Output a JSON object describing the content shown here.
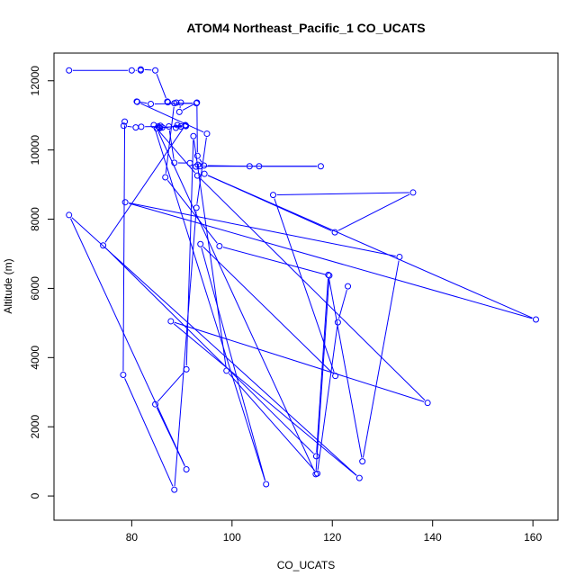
{
  "chart_data": {
    "type": "line",
    "title": "ATOM4 Northeast_Pacific_1 CO_UCATS",
    "xlabel": "CO_UCATS",
    "ylabel": "Altitude (m)",
    "xlim": [
      64.5,
      165
    ],
    "ylim": [
      -700,
      12800
    ],
    "xticks": [
      80,
      100,
      120,
      140,
      160
    ],
    "yticks": [
      0,
      2000,
      4000,
      6000,
      8000,
      10000,
      12000
    ],
    "grid": false,
    "series_color": "#0000ff",
    "points": [
      {
        "x": 67.5,
        "y": 12300
      },
      {
        "x": 80.0,
        "y": 12300
      },
      {
        "x": 81.8,
        "y": 12300
      },
      {
        "x": 81.8,
        "y": 12330
      },
      {
        "x": 84.7,
        "y": 12300
      },
      {
        "x": 87.1,
        "y": 11400
      },
      {
        "x": 87.2,
        "y": 11380
      },
      {
        "x": 88.9,
        "y": 11370
      },
      {
        "x": 89.8,
        "y": 11370
      },
      {
        "x": 89.5,
        "y": 11100
      },
      {
        "x": 93.0,
        "y": 11370
      },
      {
        "x": 93.1,
        "y": 9830
      },
      {
        "x": 94.4,
        "y": 9550
      },
      {
        "x": 103.5,
        "y": 9530
      },
      {
        "x": 105.4,
        "y": 9530
      },
      {
        "x": 117.7,
        "y": 9530
      },
      {
        "x": 93.6,
        "y": 9530
      },
      {
        "x": 93.2,
        "y": 9570
      },
      {
        "x": 92.8,
        "y": 9520
      },
      {
        "x": 91.6,
        "y": 9620
      },
      {
        "x": 88.5,
        "y": 9630
      },
      {
        "x": 87.4,
        "y": 10680
      },
      {
        "x": 90.8,
        "y": 10700
      },
      {
        "x": 89.8,
        "y": 10680
      },
      {
        "x": 89.1,
        "y": 10720
      },
      {
        "x": 88.8,
        "y": 10640
      },
      {
        "x": 90.8,
        "y": 10690
      },
      {
        "x": 85.5,
        "y": 10650
      },
      {
        "x": 85.7,
        "y": 10700
      },
      {
        "x": 86.1,
        "y": 10650
      },
      {
        "x": 85.6,
        "y": 10630
      },
      {
        "x": 85.3,
        "y": 10680
      },
      {
        "x": 81.9,
        "y": 10670
      },
      {
        "x": 80.8,
        "y": 10650
      },
      {
        "x": 78.4,
        "y": 10700
      },
      {
        "x": 78.6,
        "y": 10820
      },
      {
        "x": 78.3,
        "y": 3500
      },
      {
        "x": 88.5,
        "y": 180
      },
      {
        "x": 92.9,
        "y": 8330
      },
      {
        "x": 95.0,
        "y": 10470
      },
      {
        "x": 81.1,
        "y": 11390
      },
      {
        "x": 81.0,
        "y": 11400
      },
      {
        "x": 83.8,
        "y": 11330
      },
      {
        "x": 92.9,
        "y": 11350
      },
      {
        "x": 88.5,
        "y": 11350
      },
      {
        "x": 86.7,
        "y": 9210
      },
      {
        "x": 97.5,
        "y": 7220
      },
      {
        "x": 119.4,
        "y": 6370
      },
      {
        "x": 116.7,
        "y": 630
      },
      {
        "x": 85.0,
        "y": 10620
      },
      {
        "x": 90.7,
        "y": 10720
      },
      {
        "x": 74.3,
        "y": 7240
      },
      {
        "x": 116.8,
        "y": 1150
      },
      {
        "x": 119.2,
        "y": 6390
      },
      {
        "x": 126.0,
        "y": 1000
      },
      {
        "x": 133.4,
        "y": 6910
      },
      {
        "x": 78.7,
        "y": 8490
      },
      {
        "x": 160.6,
        "y": 5100
      },
      {
        "x": 94.5,
        "y": 9310
      },
      {
        "x": 120.5,
        "y": 7620
      },
      {
        "x": 136.1,
        "y": 8770
      },
      {
        "x": 108.2,
        "y": 8700
      },
      {
        "x": 120.6,
        "y": 3470
      },
      {
        "x": 93.7,
        "y": 7280
      },
      {
        "x": 106.8,
        "y": 340
      },
      {
        "x": 84.4,
        "y": 10720
      },
      {
        "x": 93.1,
        "y": 9260
      },
      {
        "x": 139.0,
        "y": 2690
      },
      {
        "x": 87.8,
        "y": 5050
      },
      {
        "x": 125.4,
        "y": 520
      },
      {
        "x": 67.5,
        "y": 8120
      },
      {
        "x": 90.9,
        "y": 770
      },
      {
        "x": 84.7,
        "y": 2650
      },
      {
        "x": 90.9,
        "y": 3660
      },
      {
        "x": 92.3,
        "y": 10400
      },
      {
        "x": 98.9,
        "y": 3620
      },
      {
        "x": 117.0,
        "y": 650
      },
      {
        "x": 121.1,
        "y": 5020
      },
      {
        "x": 123.1,
        "y": 6060
      }
    ]
  }
}
